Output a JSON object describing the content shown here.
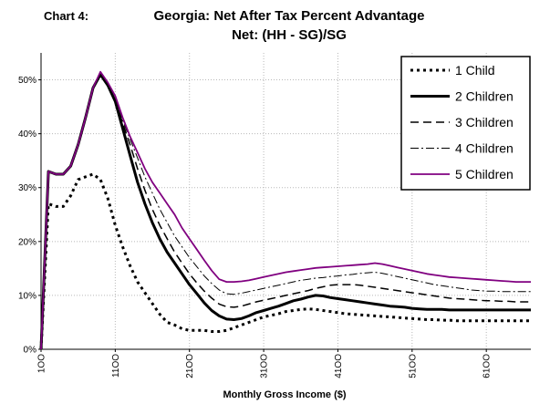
{
  "header": {
    "chart_label": "Chart 4:",
    "title_line1": "Georgia: Net After Tax Percent Advantage",
    "title_line2": "Net: (HH - SG)/SG"
  },
  "chart_data": {
    "type": "line",
    "title": "Georgia: Net After Tax Percent Advantage",
    "subtitle": "Net: (HH - SG)/SG",
    "xlabel": "Monthly Gross Income ($)",
    "ylabel": "",
    "x_tick_labels": [
      "1OO",
      "11OO",
      "21OO",
      "31OO",
      "41OO",
      "51OO",
      "61OO"
    ],
    "x_ticks": [
      100,
      1100,
      2100,
      3100,
      4100,
      5100,
      6100
    ],
    "y_tick_labels": [
      "0%",
      "10%",
      "20%",
      "30%",
      "40%",
      "50%"
    ],
    "y_ticks": [
      0,
      10,
      20,
      30,
      40,
      50
    ],
    "xlim": [
      100,
      6700
    ],
    "ylim": [
      0,
      55
    ],
    "grid": true,
    "legend_position": "top-right",
    "x": [
      100,
      200,
      300,
      400,
      500,
      600,
      700,
      800,
      900,
      1000,
      1100,
      1200,
      1300,
      1400,
      1500,
      1600,
      1700,
      1800,
      1900,
      2000,
      2100,
      2200,
      2300,
      2400,
      2500,
      2600,
      2700,
      2800,
      2900,
      3000,
      3100,
      3200,
      3300,
      3400,
      3500,
      3600,
      3700,
      3800,
      3900,
      4000,
      4100,
      4200,
      4300,
      4400,
      4500,
      4600,
      4700,
      4800,
      4900,
      5000,
      5100,
      5200,
      5300,
      5400,
      5500,
      5600,
      5700,
      5800,
      5900,
      6000,
      6100,
      6200,
      6300,
      6400,
      6500,
      6600,
      6700
    ],
    "series": [
      {
        "name": "1 Child",
        "style": "dotted",
        "color": "#000000",
        "values": [
          0,
          27,
          26.5,
          26.5,
          28.5,
          31.5,
          32,
          32.5,
          31.5,
          28,
          23,
          19,
          15.5,
          12.5,
          10.5,
          8.5,
          6.5,
          5,
          4.5,
          3.8,
          3.5,
          3.5,
          3.5,
          3.3,
          3.3,
          3.5,
          4,
          4.5,
          5,
          5.5,
          6,
          6.3,
          6.6,
          7,
          7.2,
          7.4,
          7.5,
          7.4,
          7.2,
          7,
          6.8,
          6.6,
          6.5,
          6.4,
          6.3,
          6.2,
          6.1,
          6,
          5.9,
          5.8,
          5.7,
          5.6,
          5.5,
          5.5,
          5.4,
          5.4,
          5.3,
          5.3,
          5.3,
          5.3,
          5.3,
          5.3,
          5.3,
          5.3,
          5.3,
          5.3,
          5.3
        ]
      },
      {
        "name": "2 Children",
        "style": "solid-thick",
        "color": "#000000",
        "values": [
          0,
          33,
          32.5,
          32.5,
          34,
          38,
          43,
          48.5,
          51,
          49,
          46,
          41,
          36,
          31,
          27,
          23.5,
          20.5,
          18,
          16,
          14,
          12,
          10.3,
          8.6,
          7.2,
          6.2,
          5.6,
          5.5,
          5.7,
          6.2,
          6.8,
          7.2,
          7.6,
          8,
          8.5,
          9,
          9.3,
          9.7,
          10,
          9.9,
          9.6,
          9.4,
          9.2,
          9,
          8.8,
          8.6,
          8.4,
          8.2,
          8,
          7.9,
          7.8,
          7.6,
          7.5,
          7.4,
          7.4,
          7.4,
          7.3,
          7.3,
          7.3,
          7.3,
          7.3,
          7.3,
          7.3,
          7.3,
          7.3,
          7.3,
          7.3,
          7.3
        ]
      },
      {
        "name": "3 Children",
        "style": "dashed",
        "color": "#000000",
        "values": [
          0,
          33,
          32.5,
          32.5,
          34,
          38,
          43,
          48.5,
          51,
          49,
          46,
          42,
          38,
          33.5,
          29.5,
          26,
          23,
          20.5,
          18,
          16,
          14,
          12.3,
          10.8,
          9.5,
          8.4,
          7.9,
          7.8,
          8,
          8.4,
          8.8,
          9.1,
          9.4,
          9.7,
          10,
          10.3,
          10.6,
          10.9,
          11.3,
          11.6,
          11.9,
          12,
          12,
          12,
          11.9,
          11.7,
          11.5,
          11.3,
          11.1,
          10.9,
          10.7,
          10.5,
          10.3,
          10.1,
          9.9,
          9.7,
          9.5,
          9.4,
          9.3,
          9.2,
          9.1,
          9,
          9,
          8.9,
          8.9,
          8.8,
          8.8,
          8.8
        ]
      },
      {
        "name": "4 Children",
        "style": "dash-dot",
        "color": "#000000",
        "values": [
          0,
          33,
          32.5,
          32.5,
          34,
          38,
          43,
          48.5,
          51,
          49,
          46,
          42.5,
          39,
          35.5,
          32,
          29,
          26,
          23.5,
          21,
          19,
          17,
          15.3,
          13.6,
          12.2,
          11,
          10.3,
          10.2,
          10.4,
          10.7,
          11,
          11.3,
          11.6,
          11.9,
          12.2,
          12.5,
          12.8,
          13,
          13.2,
          13.3,
          13.5,
          13.6,
          13.8,
          13.9,
          14.1,
          14.2,
          14.3,
          14.1,
          13.8,
          13.5,
          13.2,
          12.9,
          12.6,
          12.3,
          12,
          11.8,
          11.6,
          11.4,
          11.2,
          11,
          10.9,
          10.8,
          10.8,
          10.7,
          10.7,
          10.7,
          10.7,
          10.7
        ]
      },
      {
        "name": "5 Children",
        "style": "solid",
        "color": "#800080",
        "values": [
          0,
          33,
          32.5,
          32.5,
          34,
          38,
          43,
          48.5,
          51.5,
          49.5,
          47,
          43,
          39.5,
          36.5,
          33.5,
          31,
          29,
          27,
          25,
          22.5,
          20.5,
          18.5,
          16.5,
          14.6,
          13,
          12.5,
          12.5,
          12.6,
          12.8,
          13.1,
          13.4,
          13.7,
          14,
          14.3,
          14.5,
          14.7,
          14.9,
          15.1,
          15.2,
          15.3,
          15.4,
          15.5,
          15.6,
          15.7,
          15.8,
          16,
          15.8,
          15.5,
          15.2,
          14.9,
          14.6,
          14.3,
          14,
          13.8,
          13.6,
          13.4,
          13.3,
          13.2,
          13.1,
          13,
          12.9,
          12.8,
          12.7,
          12.6,
          12.5,
          12.5,
          12.5
        ]
      }
    ]
  }
}
